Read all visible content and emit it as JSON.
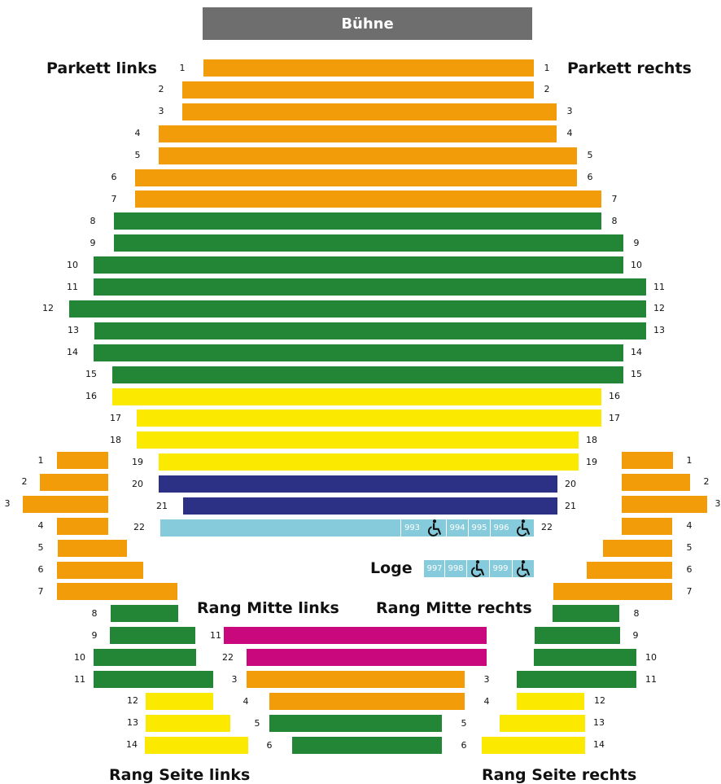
{
  "stage_label": "Bühne",
  "colors": {
    "orange": "#f39c09",
    "green": "#238636",
    "yellow": "#fbea00",
    "navy": "#2c3185",
    "lightblue": "#86cbdb",
    "magenta": "#c8087c",
    "grey": "#6e6e6e"
  },
  "sections": {
    "parkett_links": "Parkett links",
    "parkett_rechts": "Parkett rechts",
    "loge": "Loge",
    "rang_mitte_links": "Rang Mitte links",
    "rang_mitte_rechts": "Rang Mitte rechts",
    "rang_seite_links": "Rang Seite links",
    "rang_seite_rechts": "Rang Seite rechts"
  },
  "parkett_rows": [
    {
      "row": "1",
      "category": "orange"
    },
    {
      "row": "2",
      "category": "orange"
    },
    {
      "row": "3",
      "category": "orange"
    },
    {
      "row": "4",
      "category": "orange"
    },
    {
      "row": "5",
      "category": "orange"
    },
    {
      "row": "6",
      "category": "orange"
    },
    {
      "row": "7",
      "category": "orange"
    },
    {
      "row": "8",
      "category": "green"
    },
    {
      "row": "9",
      "category": "green"
    },
    {
      "row": "10",
      "category": "green"
    },
    {
      "row": "11",
      "category": "green"
    },
    {
      "row": "12",
      "category": "green"
    },
    {
      "row": "13",
      "category": "green"
    },
    {
      "row": "14",
      "category": "green"
    },
    {
      "row": "15",
      "category": "green"
    },
    {
      "row": "16",
      "category": "yellow"
    },
    {
      "row": "17",
      "category": "yellow"
    },
    {
      "row": "18",
      "category": "yellow"
    },
    {
      "row": "19",
      "category": "yellow"
    },
    {
      "row": "20",
      "category": "navy"
    },
    {
      "row": "21",
      "category": "navy"
    },
    {
      "row": "22",
      "category": "lightblue"
    }
  ],
  "row22_seats": [
    "993",
    "994",
    "995",
    "996"
  ],
  "loge_seats": [
    "997",
    "998",
    "999"
  ],
  "rang_seite_links_rows": [
    {
      "row": "1",
      "category": "orange"
    },
    {
      "row": "2",
      "category": "orange"
    },
    {
      "row": "3",
      "category": "orange"
    },
    {
      "row": "4",
      "category": "orange"
    },
    {
      "row": "5",
      "category": "orange"
    },
    {
      "row": "6",
      "category": "orange"
    },
    {
      "row": "7",
      "category": "orange"
    },
    {
      "row": "8",
      "category": "green"
    },
    {
      "row": "9",
      "category": "green"
    },
    {
      "row": "10",
      "category": "green"
    },
    {
      "row": "11",
      "category": "green"
    },
    {
      "row": "12",
      "category": "yellow"
    },
    {
      "row": "13",
      "category": "yellow"
    },
    {
      "row": "14",
      "category": "yellow"
    }
  ],
  "rang_seite_rechts_rows": [
    {
      "row": "1",
      "category": "orange"
    },
    {
      "row": "2",
      "category": "orange"
    },
    {
      "row": "3",
      "category": "orange"
    },
    {
      "row": "4",
      "category": "orange"
    },
    {
      "row": "5",
      "category": "orange"
    },
    {
      "row": "6",
      "category": "orange"
    },
    {
      "row": "7",
      "category": "orange"
    },
    {
      "row": "8",
      "category": "green"
    },
    {
      "row": "9",
      "category": "green"
    },
    {
      "row": "10",
      "category": "green"
    },
    {
      "row": "11",
      "category": "green"
    },
    {
      "row": "12",
      "category": "yellow"
    },
    {
      "row": "13",
      "category": "yellow"
    },
    {
      "row": "14",
      "category": "yellow"
    }
  ],
  "rang_mitte_rows": [
    {
      "left": "11",
      "right": "",
      "category": "magenta"
    },
    {
      "left": "22",
      "right": "",
      "category": "magenta"
    },
    {
      "left": "3",
      "right": "3",
      "category": "orange"
    },
    {
      "left": "4",
      "right": "4",
      "category": "orange"
    },
    {
      "left": "5",
      "right": "5",
      "category": "green"
    },
    {
      "left": "6",
      "right": "6",
      "category": "green"
    }
  ]
}
